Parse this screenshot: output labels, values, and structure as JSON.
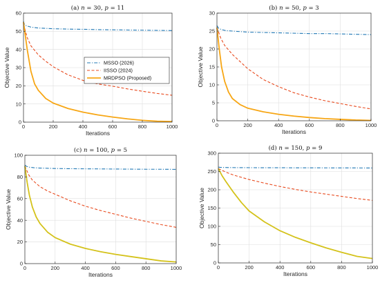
{
  "figure": {
    "series_styles": [
      {
        "name": "MSSO (2026)",
        "color": "#1f77b4",
        "dash": "dashdot"
      },
      {
        "name": "IISSO (2024)",
        "color": "#e8491d",
        "dash": "dashed"
      },
      {
        "name": "MRDPSO (Proposed)",
        "color": "#f7a614",
        "dash": "solid"
      }
    ]
  },
  "chart_data": [
    {
      "type": "line",
      "title": "(a) n = 30, p = 11",
      "title_parts": {
        "prefix": "(a) ",
        "v1": "n",
        "mid": " = 30, ",
        "v2": "p",
        "suffix": " = 11"
      },
      "xlabel": "Iterations",
      "ylabel": "Objective Value",
      "xlim": [
        0,
        1000
      ],
      "ylim": [
        0,
        60
      ],
      "xticks": [
        0,
        200,
        400,
        600,
        800,
        1000
      ],
      "yticks": [
        0,
        10,
        20,
        30,
        40,
        50,
        60
      ],
      "grid": true,
      "legend": "center-right",
      "series": [
        {
          "name": "MSSO (2026)",
          "color": "#1f77b4",
          "x": [
            0,
            5,
            20,
            50,
            100,
            200,
            300,
            400,
            500,
            600,
            700,
            800,
            900,
            1000
          ],
          "values": [
            55.5,
            54.0,
            53.0,
            52.3,
            51.8,
            51.4,
            51.2,
            51.1,
            50.9,
            50.8,
            50.7,
            50.6,
            50.5,
            50.4
          ]
        },
        {
          "name": "IISSO (2024)",
          "color": "#e8491d",
          "x": [
            0,
            25,
            50,
            100,
            150,
            200,
            300,
            400,
            500,
            600,
            700,
            800,
            900,
            1000
          ],
          "values": [
            54.0,
            46.5,
            42.0,
            37.0,
            33.5,
            30.5,
            26.0,
            23.0,
            21.0,
            19.8,
            18.3,
            17.0,
            15.8,
            14.8
          ]
        },
        {
          "name": "MRDPSO (Proposed)",
          "color": "#f7a614",
          "x": [
            0,
            25,
            50,
            75,
            100,
            150,
            200,
            300,
            400,
            500,
            600,
            700,
            800,
            900,
            1000
          ],
          "values": [
            55.0,
            40.0,
            28.0,
            21.0,
            17.5,
            13.0,
            10.5,
            7.5,
            5.5,
            4.0,
            2.8,
            1.8,
            1.0,
            0.5,
            0.3
          ]
        }
      ]
    },
    {
      "type": "line",
      "title": "(b) n = 50, p = 3",
      "title_parts": {
        "prefix": "(b) ",
        "v1": "n",
        "mid": " = 50, ",
        "v2": "p",
        "suffix": " = 3"
      },
      "xlabel": "Iterations",
      "ylabel": "Objective Value",
      "xlim": [
        0,
        1000
      ],
      "ylim": [
        0,
        30
      ],
      "xticks": [
        0,
        200,
        400,
        600,
        800,
        1000
      ],
      "yticks": [
        0,
        5,
        10,
        15,
        20,
        25,
        30
      ],
      "grid": true,
      "legend": "",
      "series": [
        {
          "name": "MSSO (2026)",
          "color": "#1f77b4",
          "x": [
            0,
            10,
            30,
            60,
            100,
            200,
            300,
            400,
            500,
            600,
            700,
            800,
            900,
            1000
          ],
          "values": [
            26.5,
            25.8,
            25.4,
            25.1,
            25.0,
            24.7,
            24.6,
            24.5,
            24.4,
            24.3,
            24.3,
            24.2,
            24.1,
            24.0
          ]
        },
        {
          "name": "IISSO (2024)",
          "color": "#e8491d",
          "x": [
            0,
            25,
            50,
            100,
            150,
            200,
            300,
            400,
            500,
            600,
            700,
            800,
            900,
            1000
          ],
          "values": [
            26.0,
            23.0,
            21.0,
            18.5,
            16.5,
            14.5,
            11.5,
            9.5,
            7.8,
            6.6,
            5.6,
            4.8,
            4.0,
            3.3
          ]
        },
        {
          "name": "MRDPSO (Proposed)",
          "color": "#f7a614",
          "x": [
            0,
            15,
            30,
            50,
            75,
            100,
            150,
            200,
            300,
            400,
            500,
            600,
            700,
            800,
            900,
            1000
          ],
          "values": [
            26.0,
            20.0,
            15.0,
            11.0,
            8.0,
            6.2,
            4.5,
            3.5,
            2.5,
            1.8,
            1.3,
            0.9,
            0.6,
            0.4,
            0.2,
            0.1
          ]
        }
      ]
    },
    {
      "type": "line",
      "title": "(c) n = 100, p = 5",
      "title_parts": {
        "prefix": "(c) ",
        "v1": "n",
        "mid": " = 100, ",
        "v2": "p",
        "suffix": " = 5"
      },
      "xlabel": "Iterations",
      "ylabel": "Objective Value",
      "xlim": [
        0,
        1000
      ],
      "ylim": [
        0,
        100
      ],
      "xticks": [
        0,
        200,
        400,
        600,
        800,
        1000
      ],
      "yticks": [
        0,
        20,
        40,
        60,
        80,
        100
      ],
      "grid": true,
      "legend": "",
      "series": [
        {
          "name": "MSSO (2026)",
          "color": "#1f77b4",
          "x": [
            0,
            10,
            30,
            60,
            100,
            200,
            300,
            400,
            500,
            600,
            700,
            800,
            900,
            1000
          ],
          "values": [
            91.0,
            89.8,
            89.0,
            88.5,
            88.2,
            87.8,
            87.6,
            87.5,
            87.4,
            87.3,
            87.2,
            87.1,
            87.1,
            87.0
          ]
        },
        {
          "name": "IISSO (2024)",
          "color": "#e8491d",
          "x": [
            0,
            25,
            50,
            100,
            150,
            200,
            300,
            400,
            500,
            600,
            700,
            800,
            900,
            1000
          ],
          "values": [
            90.0,
            82.0,
            77.0,
            71.0,
            67.0,
            64.0,
            58.0,
            53.0,
            49.0,
            45.5,
            42.0,
            39.0,
            36.0,
            33.5
          ]
        },
        {
          "name": "MRDPSO (Proposed)",
          "color": "#d4c21a",
          "x": [
            0,
            15,
            30,
            50,
            75,
            100,
            150,
            200,
            300,
            400,
            500,
            600,
            700,
            800,
            900,
            1000
          ],
          "values": [
            90.0,
            75.0,
            63.0,
            52.0,
            43.0,
            37.0,
            29.0,
            24.0,
            18.0,
            14.0,
            11.0,
            8.5,
            6.5,
            4.5,
            2.5,
            1.5
          ]
        }
      ]
    },
    {
      "type": "line",
      "title": "(d) n = 150, p = 9",
      "title_parts": {
        "prefix": "(d) ",
        "v1": "n",
        "mid": " = 150, ",
        "v2": "p",
        "suffix": " = 9"
      },
      "xlabel": "Iterations",
      "ylabel": "Objective Value",
      "xlim": [
        0,
        1000
      ],
      "ylim": [
        0,
        300
      ],
      "xticks": [
        0,
        200,
        400,
        600,
        800,
        1000
      ],
      "yticks": [
        0,
        50,
        100,
        150,
        200,
        250,
        300
      ],
      "grid": true,
      "legend": "",
      "series": [
        {
          "name": "MSSO (2026)",
          "color": "#1f77b4",
          "x": [
            0,
            10,
            30,
            60,
            100,
            200,
            300,
            400,
            500,
            600,
            700,
            800,
            900,
            1000
          ],
          "values": [
            262.0,
            261.5,
            261.0,
            260.8,
            260.6,
            260.4,
            260.3,
            260.2,
            260.1,
            260.0,
            259.9,
            259.8,
            259.7,
            259.6
          ]
        },
        {
          "name": "IISSO (2024)",
          "color": "#e8491d",
          "x": [
            0,
            50,
            100,
            150,
            200,
            300,
            400,
            500,
            600,
            700,
            800,
            900,
            1000
          ],
          "values": [
            258.0,
            248.0,
            240.0,
            234.0,
            228.0,
            218.0,
            209.0,
            201.0,
            194.0,
            188.0,
            182.0,
            176.0,
            171.0
          ]
        },
        {
          "name": "MRDPSO (Proposed)",
          "color": "#d4c21a",
          "x": [
            0,
            25,
            50,
            100,
            150,
            200,
            300,
            400,
            500,
            600,
            700,
            800,
            900,
            1000
          ],
          "values": [
            258.0,
            238.0,
            222.0,
            192.0,
            165.0,
            142.0,
            112.0,
            88.0,
            70.0,
            55.0,
            41.0,
            29.0,
            18.0,
            12.0
          ]
        }
      ]
    }
  ]
}
